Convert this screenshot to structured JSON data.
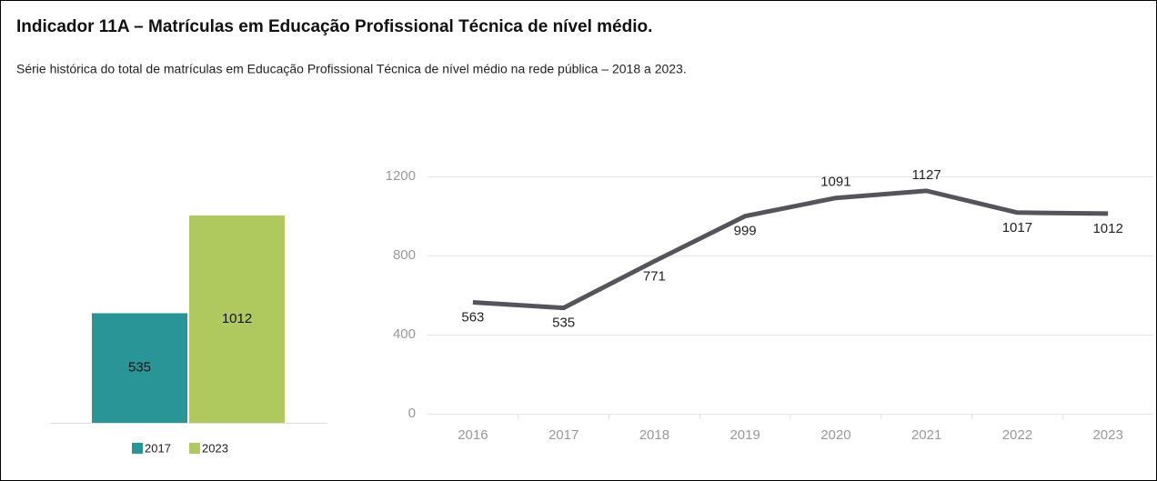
{
  "header": {
    "title": "Indicador 11A – Matrículas em Educação Profissional Técnica de nível médio.",
    "subtitle": "Série histórica do total de matrículas em Educação Profissional Técnica de nível médio na rede pública – 2018 a 2023."
  },
  "chart_data": [
    {
      "type": "bar",
      "categories": [
        null
      ],
      "series": [
        {
          "name": "2017",
          "color": "#2a9596",
          "values": [
            535
          ]
        },
        {
          "name": "2023",
          "color": "#b0c95e",
          "values": [
            1012
          ]
        }
      ],
      "legend": "bottom"
    },
    {
      "type": "line",
      "categories": [
        "2016",
        "2017",
        "2018",
        "2019",
        "2020",
        "2021",
        "2022",
        "2023"
      ],
      "values": [
        563,
        535,
        771,
        999,
        1091,
        1127,
        1017,
        1012
      ],
      "color": "#55545c",
      "ylim": [
        0,
        1200
      ],
      "yticks": [
        0,
        400,
        800,
        1200
      ],
      "grid": true
    }
  ]
}
